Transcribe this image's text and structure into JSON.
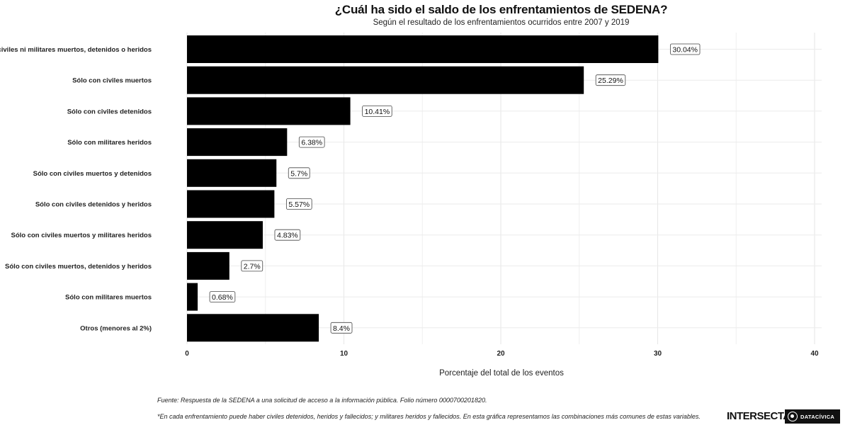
{
  "chart_data": {
    "type": "bar",
    "orientation": "horizontal",
    "title": "¿Cuál ha sido el saldo de los enfrentamientos de SEDENA?",
    "subtitle": "Según el resultado de los enfrentamientos ocurridos entre 2007 y 2019",
    "xlabel": "Porcentaje del total de los eventos",
    "ylabel": "",
    "xlim": [
      0,
      42
    ],
    "xticks": [
      0,
      10,
      20,
      30,
      40
    ],
    "grid": true,
    "categories": [
      "Sin civiles ni militares muertos, detenidos o heridos",
      "Sólo con civiles muertos",
      "Sólo con civiles detenidos",
      "Sólo con militares heridos",
      "Sólo con civiles muertos y detenidos",
      "Sólo con civiles detenidos y  heridos",
      "Sólo con civiles muertos y militares heridos",
      "Sólo con civiles muertos, detenidos y heridos",
      "Sólo con militares muertos",
      "Otros (menores al 2%)"
    ],
    "values": [
      30.04,
      25.29,
      10.41,
      6.38,
      5.7,
      5.57,
      4.83,
      2.7,
      0.68,
      8.4
    ],
    "labels": [
      "30.04%",
      "25.29%",
      "10.41%",
      "6.38%",
      "5.7%",
      "5.57%",
      "4.83%",
      "2.7%",
      "0.68%",
      "8.4%"
    ],
    "bar_color": "#000000"
  },
  "footnotes": {
    "source": "Fuente: Respuesta de la SEDENA a una solicitud de acceso a la información pública. Folio número 0000700201820.",
    "note": "*En cada enfrentamiento puede haber civiles detenidos, heridos y fallecidos; y militares heridos y fallecidos. En esta gráfica representamos las combinaciones más comunes de estas variables."
  },
  "logos": {
    "intersecta": "INTERSECTA",
    "datacivica": "DATACÍVICA"
  }
}
